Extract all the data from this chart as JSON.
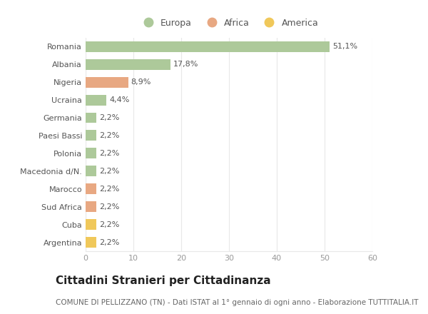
{
  "categories": [
    "Romania",
    "Albania",
    "Nigeria",
    "Ucraina",
    "Germania",
    "Paesi Bassi",
    "Polonia",
    "Macedonia d/N.",
    "Marocco",
    "Sud Africa",
    "Cuba",
    "Argentina"
  ],
  "values": [
    51.1,
    17.8,
    8.9,
    4.4,
    2.2,
    2.2,
    2.2,
    2.2,
    2.2,
    2.2,
    2.2,
    2.2
  ],
  "labels": [
    "51,1%",
    "17,8%",
    "8,9%",
    "4,4%",
    "2,2%",
    "2,2%",
    "2,2%",
    "2,2%",
    "2,2%",
    "2,2%",
    "2,2%",
    "2,2%"
  ],
  "continents": [
    "Europa",
    "Europa",
    "Africa",
    "Europa",
    "Europa",
    "Europa",
    "Europa",
    "Europa",
    "Africa",
    "Africa",
    "America",
    "America"
  ],
  "colors": {
    "Europa": "#adc99a",
    "Africa": "#e8a882",
    "America": "#f0c85a"
  },
  "legend_labels": [
    "Europa",
    "Africa",
    "America"
  ],
  "legend_colors": [
    "#adc99a",
    "#e8a882",
    "#f0c85a"
  ],
  "title": "Cittadini Stranieri per Cittadinanza",
  "subtitle": "COMUNE DI PELLIZZANO (TN) - Dati ISTAT al 1° gennaio di ogni anno - Elaborazione TUTTITALIA.IT",
  "xlim": [
    0,
    60
  ],
  "xticks": [
    0,
    10,
    20,
    30,
    40,
    50,
    60
  ],
  "background_color": "#ffffff",
  "grid_color": "#e8e8e8",
  "bar_height": 0.6,
  "title_fontsize": 11,
  "subtitle_fontsize": 7.5,
  "label_fontsize": 8,
  "tick_fontsize": 8,
  "legend_fontsize": 9
}
